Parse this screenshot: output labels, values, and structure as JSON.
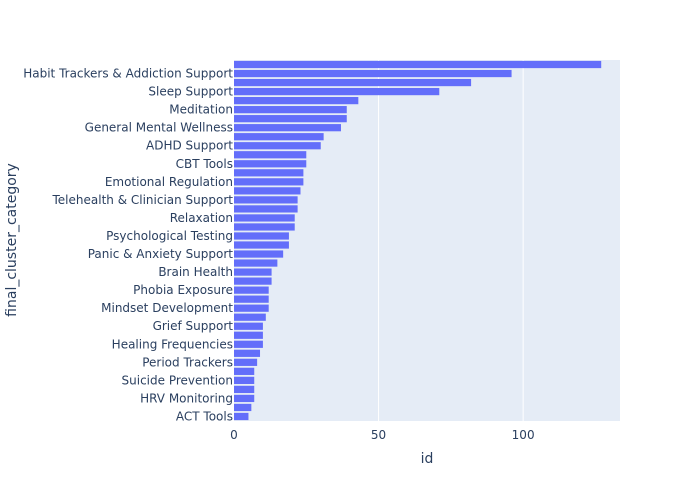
{
  "chart_data": {
    "type": "bar",
    "orientation": "horizontal",
    "xlabel": "id",
    "ylabel": "final_cluster_category",
    "xlim": [
      0,
      133.5
    ],
    "xticks": [
      0,
      50,
      100
    ],
    "grid": true,
    "colors": {
      "bar": "#636efa",
      "plot_bg": "#e5ecf6",
      "grid": "#ffffff",
      "text": "#2a3f5f"
    },
    "categories": [
      "",
      "Habit Trackers & Addiction Support",
      "",
      "Sleep Support",
      "",
      "Meditation",
      "",
      "General Mental Wellness",
      "",
      "ADHD Support",
      "",
      "CBT Tools",
      "",
      "Emotional Regulation",
      "",
      "Telehealth & Clinician Support",
      "",
      "Relaxation",
      "",
      "Psychological Testing",
      "",
      "Panic & Anxiety Support",
      "",
      "Brain Health",
      "",
      "Phobia Exposure",
      "",
      "Mindset Development",
      "",
      "Grief Support",
      "",
      "Healing Frequencies",
      "",
      "Period Trackers",
      "",
      "Suicide Prevention",
      "",
      "HRV Monitoring",
      "",
      "ACT Tools"
    ],
    "values": [
      127,
      96,
      82,
      71,
      43,
      39,
      39,
      37,
      31,
      30,
      25,
      25,
      24,
      24,
      23,
      22,
      22,
      21,
      21,
      19,
      19,
      17,
      15,
      13,
      13,
      12,
      12,
      12,
      11,
      10,
      10,
      10,
      9,
      8,
      7,
      7,
      7,
      7,
      6,
      5
    ]
  }
}
